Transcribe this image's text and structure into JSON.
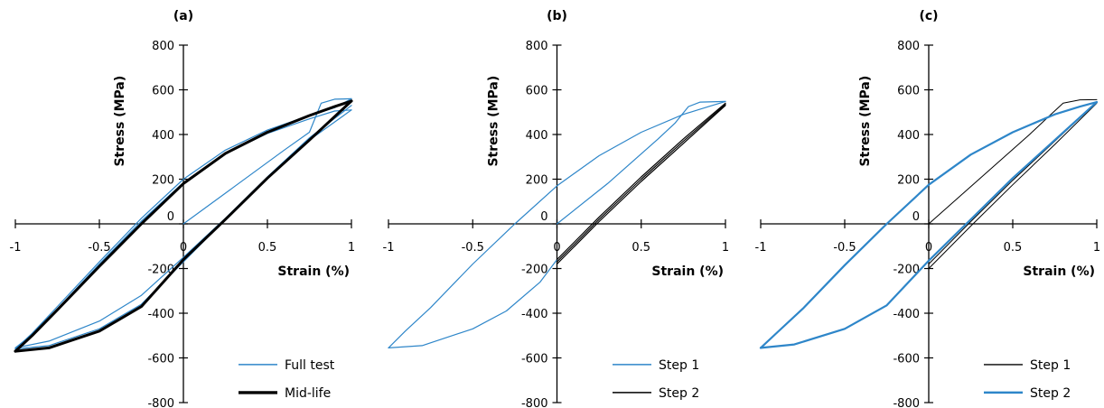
{
  "colors": {
    "blue": "#2E86C9",
    "black": "#000000",
    "axis": "#000000"
  },
  "chart_data": [
    {
      "type": "line",
      "panel_label": "(a)",
      "xlabel": "Strain (%)",
      "ylabel": "Stress (MPa)",
      "xlim": [
        -1,
        1
      ],
      "ylim": [
        -800,
        800
      ],
      "xticks": [
        -1,
        -0.5,
        0,
        0.5,
        1
      ],
      "xtick_labels": [
        "-1",
        "-0.5",
        "0",
        "0.5",
        "1"
      ],
      "yticks": [
        -800,
        -600,
        -400,
        -200,
        0,
        200,
        400,
        600,
        800
      ],
      "ytick_labels": [
        "-800",
        "-600",
        "-400",
        "-200",
        "0",
        "200",
        "400",
        "600",
        "800"
      ],
      "grid": false,
      "legend_position": "bottom-right",
      "series": [
        {
          "name": "Full test",
          "color": "#2E86C9",
          "width": 1.2,
          "segments": [
            {
              "x": [
                0,
                0.3,
                0.6,
                0.75,
                0.82,
                0.9,
                1.0
              ],
              "y": [
                0,
                165,
                330,
                410,
                540,
                558,
                560
              ]
            },
            {
              "x": [
                1.0,
                0.9,
                0.75,
                0.5,
                0.25,
                0,
                -0.25,
                -0.5,
                -0.75,
                -0.9,
                -1.0
              ],
              "y": [
                560,
                520,
                485,
                420,
                330,
                200,
                25,
                -170,
                -370,
                -490,
                -560
              ]
            },
            {
              "x": [
                -1.0,
                -0.8,
                -0.5,
                -0.25,
                0,
                0.25,
                0.5,
                0.75,
                1.0
              ],
              "y": [
                -560,
                -545,
                -470,
                -360,
                -170,
                20,
                205,
                375,
                510
              ]
            },
            {
              "x": [
                1.0,
                0.9,
                0.75,
                0.5,
                0.25,
                0,
                -0.25,
                -0.5,
                -0.75,
                -0.9,
                -1.0
              ],
              "y": [
                510,
                505,
                470,
                405,
                315,
                185,
                12,
                -180,
                -380,
                -495,
                -555
              ]
            },
            {
              "x": [
                -1.0,
                -0.8,
                -0.5,
                -0.25,
                0,
                0.25,
                0.5,
                0.75,
                1.0
              ],
              "y": [
                -555,
                -525,
                -435,
                -320,
                -150,
                25,
                210,
                385,
                530
              ]
            }
          ]
        },
        {
          "name": "Mid-life",
          "color": "#000000",
          "width": 3,
          "segments": [
            {
              "x": [
                1.0,
                0.9,
                0.75,
                0.5,
                0.25,
                0,
                -0.25,
                -0.5,
                -0.75,
                -0.9,
                -1.0
              ],
              "y": [
                550,
                525,
                485,
                410,
                315,
                180,
                0,
                -190,
                -385,
                -500,
                -570
              ]
            },
            {
              "x": [
                -1.0,
                -0.8,
                -0.5,
                -0.25,
                0,
                0.25,
                0.5,
                0.75,
                1.0
              ],
              "y": [
                -570,
                -555,
                -480,
                -370,
                -160,
                20,
                205,
                375,
                550
              ]
            }
          ]
        }
      ]
    },
    {
      "type": "line",
      "panel_label": "(b)",
      "xlabel": "Strain (%)",
      "ylabel": "Stress (MPa)",
      "xlim": [
        -1,
        1
      ],
      "ylim": [
        -800,
        800
      ],
      "xticks": [
        -1,
        -0.5,
        0,
        0.5,
        1
      ],
      "xtick_labels": [
        "-1",
        "-0.5",
        "0",
        "0.5",
        "1"
      ],
      "yticks": [
        -800,
        -600,
        -400,
        -200,
        0,
        200,
        400,
        600,
        800
      ],
      "ytick_labels": [
        "-800",
        "-600",
        "-400",
        "-200",
        "0",
        "200",
        "400",
        "600",
        "800"
      ],
      "grid": false,
      "legend_position": "bottom-right",
      "series": [
        {
          "name": "Step 1",
          "color": "#2E86C9",
          "width": 1.2,
          "segments": [
            {
              "x": [
                0,
                0.3,
                0.6,
                0.7,
                0.78,
                0.85,
                1.0
              ],
              "y": [
                0,
                180,
                380,
                450,
                525,
                545,
                548
              ]
            },
            {
              "x": [
                1.0,
                0.9,
                0.75,
                0.5,
                0.25,
                0,
                -0.25,
                -0.5,
                -0.75,
                -0.9,
                -1.0
              ],
              "y": [
                548,
                525,
                490,
                410,
                305,
                170,
                0,
                -180,
                -375,
                -480,
                -555
              ]
            },
            {
              "x": [
                -1.0,
                -0.8,
                -0.5,
                -0.3,
                -0.1,
                0
              ],
              "y": [
                -555,
                -545,
                -470,
                -390,
                -260,
                -160
              ]
            }
          ]
        },
        {
          "name": "Step 2",
          "color": "#000000",
          "width": 1.2,
          "segments": [
            {
              "x": [
                0,
                0.25,
                0.5,
                0.75,
                1.0
              ],
              "y": [
                -180,
                10,
                190,
                360,
                530
              ]
            },
            {
              "x": [
                0,
                0.25,
                0.5,
                0.75,
                1.0
              ],
              "y": [
                -160,
                30,
                210,
                380,
                540
              ]
            },
            {
              "x": [
                0,
                0.25,
                0.5,
                0.75,
                1.0
              ],
              "y": [
                -170,
                20,
                200,
                370,
                535
              ]
            }
          ]
        }
      ]
    },
    {
      "type": "line",
      "panel_label": "(c)",
      "xlabel": "Strain (%)",
      "ylabel": "Stress (MPa)",
      "xlim": [
        -1,
        1
      ],
      "ylim": [
        -800,
        800
      ],
      "xticks": [
        -1,
        -0.5,
        0,
        0.5,
        1
      ],
      "xtick_labels": [
        "-1",
        "-0.5",
        "0",
        "0.5",
        "1"
      ],
      "yticks": [
        -800,
        -600,
        -400,
        -200,
        0,
        200,
        400,
        600,
        800
      ],
      "ytick_labels": [
        "-800",
        "-600",
        "-400",
        "-200",
        "0",
        "200",
        "400",
        "600",
        "800"
      ],
      "grid": false,
      "legend_position": "bottom-right",
      "series": [
        {
          "name": "Step 1",
          "color": "#000000",
          "width": 1,
          "segments": [
            {
              "x": [
                0,
                0.3,
                0.6,
                0.72,
                0.8,
                0.9,
                1.0
              ],
              "y": [
                0,
                200,
                400,
                485,
                540,
                555,
                556
              ]
            },
            {
              "x": [
                0,
                0.25,
                0.5,
                0.75,
                1.0
              ],
              "y": [
                -200,
                -10,
                175,
                355,
                540
              ]
            },
            {
              "x": [
                0,
                0.25,
                0.5,
                0.75,
                1.0
              ],
              "y": [
                -180,
                10,
                195,
                370,
                545
              ]
            }
          ]
        },
        {
          "name": "Step 2",
          "color": "#2E86C9",
          "width": 2.2,
          "segments": [
            {
              "x": [
                1.0,
                0.9,
                0.75,
                0.5,
                0.25,
                0,
                -0.25,
                -0.5,
                -0.75,
                -0.9,
                -1.0
              ],
              "y": [
                545,
                525,
                490,
                410,
                310,
                175,
                0,
                -185,
                -380,
                -485,
                -555
              ]
            },
            {
              "x": [
                -1.0,
                -0.8,
                -0.5,
                -0.25,
                0,
                0.25,
                0.5,
                0.75,
                1.0
              ],
              "y": [
                -555,
                -540,
                -470,
                -365,
                -165,
                20,
                205,
                375,
                545
              ]
            }
          ]
        }
      ]
    }
  ]
}
